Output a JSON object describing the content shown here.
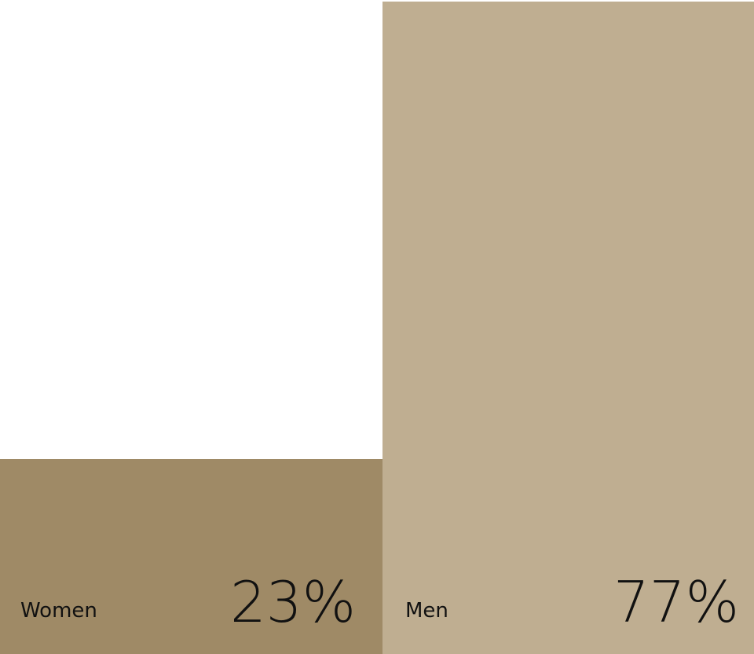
{
  "chart_data": {
    "type": "bar",
    "categories": [
      "Women",
      "Men"
    ],
    "values": [
      23,
      77
    ],
    "value_labels": [
      "23%",
      "77%"
    ],
    "unit": "%",
    "ylim": [
      0,
      77
    ],
    "colors": [
      "#9f8a66",
      "#bfae91"
    ],
    "grid": false,
    "legend": "none"
  }
}
